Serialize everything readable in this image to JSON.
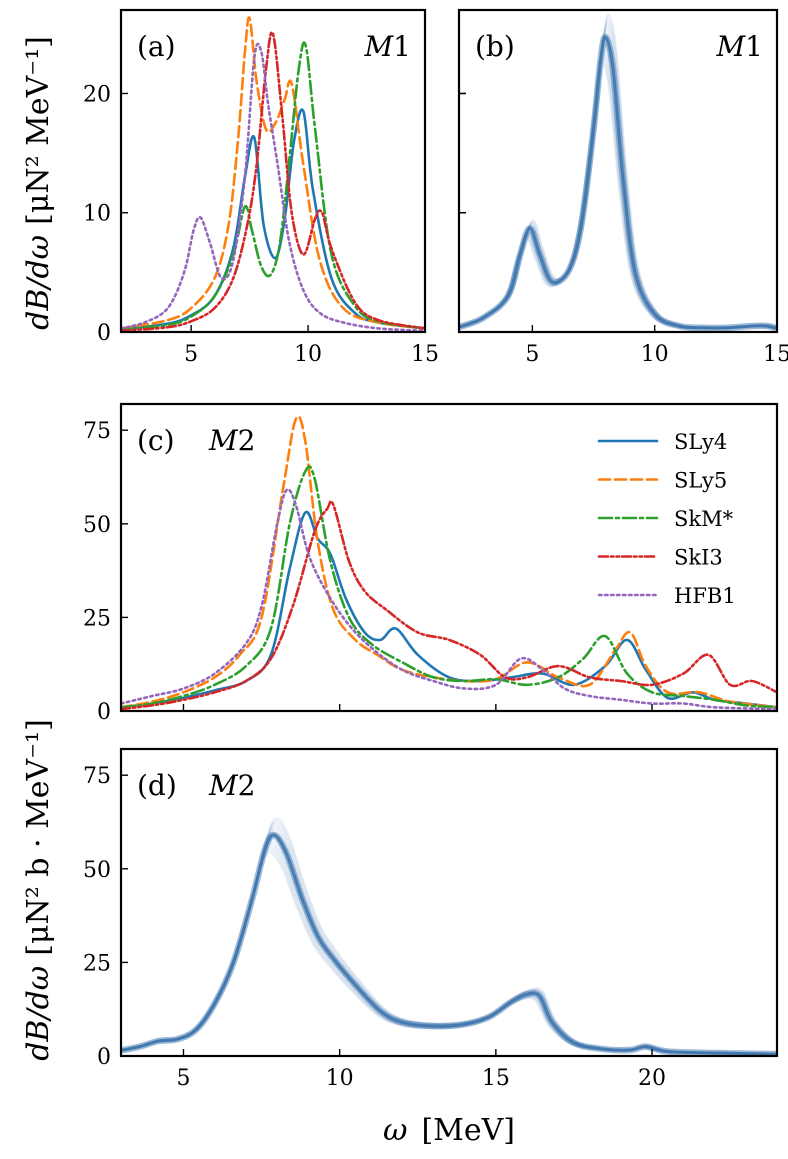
{
  "chart_data": [
    {
      "id": "a",
      "type": "line",
      "panel_label": "(a)",
      "multipole": "M1",
      "xlim": [
        2,
        15
      ],
      "ylim": [
        0,
        27
      ],
      "xticks": [
        5,
        10,
        15
      ],
      "yticks": [
        0,
        10,
        20
      ],
      "series": [
        {
          "name": "SLy4",
          "color": "#1f77b4",
          "style": "solid",
          "x": [
            2,
            4,
            5,
            6,
            6.8,
            7.3,
            7.7,
            8.1,
            8.6,
            9.0,
            9.4,
            9.8,
            10.2,
            11,
            12,
            13,
            15
          ],
          "y": [
            0.2,
            0.7,
            1.4,
            3.0,
            7.0,
            13.0,
            16.3,
            9.0,
            6.2,
            9.5,
            16.0,
            18.5,
            12.0,
            4.5,
            1.6,
            0.8,
            0.3
          ]
        },
        {
          "name": "SLy5",
          "color": "#ff7f0e",
          "style": "dashed",
          "x": [
            2,
            4,
            5,
            6,
            6.6,
            7.0,
            7.3,
            7.5,
            7.8,
            8.2,
            8.6,
            9.0,
            9.3,
            9.8,
            10.5,
            11.5,
            13,
            15
          ],
          "y": [
            0.3,
            1.0,
            2.0,
            4.5,
            9.0,
            16.0,
            23.5,
            26.3,
            21.0,
            17.0,
            17.5,
            19.5,
            20.8,
            14.0,
            6.0,
            2.0,
            0.8,
            0.3
          ]
        },
        {
          "name": "SkM*",
          "color": "#2ca02c",
          "style": "dashdot",
          "x": [
            2,
            4,
            5,
            6,
            6.8,
            7.3,
            7.6,
            8.0,
            8.4,
            8.8,
            9.2,
            9.6,
            9.9,
            10.3,
            11,
            12,
            13,
            15
          ],
          "y": [
            0.2,
            0.6,
            1.3,
            3.0,
            6.5,
            10.5,
            8.5,
            5.5,
            4.8,
            7.5,
            14.5,
            22.0,
            24.0,
            17.0,
            6.5,
            2.2,
            0.9,
            0.3
          ]
        },
        {
          "name": "SkI3",
          "color": "#d62728",
          "style": "dashdotdot",
          "x": [
            2,
            4,
            5,
            6,
            6.8,
            7.4,
            7.8,
            8.2,
            8.5,
            8.9,
            9.3,
            9.8,
            10.3,
            10.6,
            11,
            12,
            13,
            15
          ],
          "y": [
            0.1,
            0.4,
            0.9,
            2.0,
            4.5,
            9.0,
            14.0,
            22.0,
            25.0,
            18.0,
            10.0,
            6.5,
            9.5,
            10.0,
            7.0,
            2.5,
            1.0,
            0.3
          ]
        },
        {
          "name": "HFB1",
          "color": "#9467bd",
          "style": "dotted",
          "x": [
            2,
            3,
            4,
            4.7,
            5.1,
            5.4,
            5.8,
            6.3,
            6.8,
            7.3,
            7.7,
            8.0,
            8.3,
            8.7,
            9.2,
            9.8,
            10.5,
            11.5,
            13,
            15
          ],
          "y": [
            0.3,
            0.8,
            2.0,
            5.0,
            8.5,
            9.6,
            7.5,
            4.5,
            6.0,
            13.0,
            23.0,
            23.5,
            19.0,
            14.0,
            7.5,
            3.5,
            1.6,
            0.8,
            0.3,
            0.1
          ]
        }
      ]
    },
    {
      "id": "b",
      "type": "line",
      "panel_label": "(b)",
      "multipole": "M1",
      "xlim": [
        2,
        15
      ],
      "ylim": [
        0,
        27
      ],
      "xticks": [
        5,
        10,
        15
      ],
      "yticks": [
        0,
        10,
        20
      ],
      "band_color": "#4a7fb5",
      "series": [
        {
          "name": "ensemble-mean",
          "x": [
            2,
            3,
            4,
            4.5,
            4.9,
            5.3,
            5.8,
            6.5,
            7.0,
            7.5,
            7.8,
            8.0,
            8.3,
            8.7,
            9.2,
            10,
            11,
            12,
            13,
            14,
            14.6,
            15
          ],
          "y": [
            0.4,
            1.2,
            3.0,
            6.5,
            8.7,
            6.5,
            4.2,
            5.2,
            9.0,
            17.0,
            23.0,
            24.7,
            22.0,
            13.0,
            5.0,
            1.5,
            0.5,
            0.35,
            0.35,
            0.5,
            0.5,
            0.3
          ]
        }
      ]
    },
    {
      "id": "c",
      "type": "line",
      "panel_label": "(c)",
      "multipole": "M2",
      "xlim": [
        3,
        24
      ],
      "ylim": [
        0,
        82
      ],
      "xticks": [
        5,
        10,
        15,
        20
      ],
      "yticks": [
        0,
        25,
        50,
        75
      ],
      "legend_position": "top-right",
      "series": [
        {
          "name": "SLy4",
          "color": "#1f77b4",
          "style": "solid",
          "x": [
            3,
            4,
            5,
            6,
            7,
            7.8,
            8.4,
            8.9,
            9.3,
            9.7,
            10.2,
            10.8,
            11.3,
            11.8,
            12.5,
            13.5,
            14.5,
            15.5,
            16.5,
            17.5,
            18.5,
            19.2,
            19.8,
            20.5,
            21.3,
            22,
            23,
            24
          ],
          "y": [
            1,
            2,
            3.5,
            5.5,
            8,
            15,
            38,
            53,
            46,
            42,
            30,
            21,
            19,
            22,
            15,
            9,
            8,
            9,
            10,
            7,
            12,
            19,
            11,
            3.5,
            5,
            3,
            2,
            1
          ]
        },
        {
          "name": "SLy5",
          "color": "#ff7f0e",
          "style": "dashed",
          "x": [
            3,
            4,
            5,
            6,
            6.8,
            7.5,
            8.2,
            8.6,
            8.9,
            9.3,
            9.8,
            10.5,
            11.2,
            12,
            13,
            14,
            15,
            16,
            17,
            18,
            18.8,
            19.3,
            19.8,
            20.5,
            21.5,
            22.5,
            24
          ],
          "y": [
            1,
            2.5,
            5,
            9,
            15,
            25,
            60,
            78,
            72,
            45,
            27,
            19,
            15,
            11,
            9,
            8,
            8.5,
            13,
            9,
            7,
            16,
            21,
            12,
            5,
            5,
            2.5,
            1
          ]
        },
        {
          "name": "SkM*",
          "color": "#2ca02c",
          "style": "dashdot",
          "x": [
            3,
            4,
            5,
            6,
            7,
            7.8,
            8.4,
            8.9,
            9.2,
            9.7,
            10.3,
            11,
            12,
            13,
            14,
            15,
            16,
            17,
            17.8,
            18.5,
            19.2,
            20,
            21,
            22,
            23,
            24
          ],
          "y": [
            1,
            2,
            4,
            7,
            12,
            22,
            50,
            64,
            62,
            40,
            25,
            18,
            13,
            9,
            8,
            8.5,
            7,
            9,
            14,
            20,
            10,
            5,
            4,
            3,
            1.5,
            1
          ]
        },
        {
          "name": "SkI3",
          "color": "#d62728",
          "style": "dashdotdot",
          "x": [
            3,
            4,
            5,
            6,
            7,
            7.8,
            8.5,
            9.2,
            9.6,
            9.8,
            10.3,
            10.8,
            11.5,
            12.5,
            13.5,
            14.5,
            15.3,
            16,
            17,
            18,
            19,
            20,
            21,
            21.8,
            22.5,
            23.2,
            24
          ],
          "y": [
            0.5,
            1.5,
            3,
            5,
            8,
            14,
            28,
            48,
            54,
            55,
            40,
            32,
            27,
            21,
            19,
            15,
            9,
            9,
            12,
            9,
            8,
            7,
            10,
            15,
            7,
            8,
            5
          ]
        },
        {
          "name": "HFB1",
          "color": "#9467bd",
          "style": "dotted",
          "x": [
            3,
            4,
            5,
            6,
            7,
            7.5,
            8.0,
            8.3,
            8.6,
            9.0,
            9.5,
            10.2,
            11,
            12,
            13,
            14,
            15,
            15.8,
            16.5,
            17.2,
            18,
            19,
            20,
            21,
            22,
            24
          ],
          "y": [
            2,
            4,
            6,
            10,
            18,
            28,
            50,
            59,
            55,
            42,
            33,
            24,
            17,
            11,
            8,
            6,
            7,
            14,
            11,
            6,
            4,
            3,
            2,
            2,
            1,
            0.5
          ]
        }
      ]
    },
    {
      "id": "d",
      "type": "line",
      "panel_label": "(d)",
      "multipole": "M2",
      "xlim": [
        3,
        24
      ],
      "ylim": [
        0,
        82
      ],
      "xticks": [
        5,
        10,
        15,
        20
      ],
      "yticks": [
        0,
        25,
        50,
        75
      ],
      "band_color": "#4a7fb5",
      "series": [
        {
          "name": "ensemble-mean",
          "x": [
            3,
            3.6,
            4.2,
            4.8,
            5.4,
            6.0,
            6.6,
            7.2,
            7.6,
            7.9,
            8.3,
            8.8,
            9.3,
            9.8,
            10.5,
            11.3,
            12.0,
            13.0,
            14.0,
            14.8,
            15.5,
            16.0,
            16.4,
            16.8,
            17.5,
            18.5,
            19.3,
            19.8,
            20.5,
            22,
            24
          ],
          "y": [
            1.5,
            2.5,
            4,
            4.5,
            7,
            14,
            25,
            42,
            55,
            59,
            54,
            42,
            32,
            26,
            19,
            12,
            9,
            8,
            8.5,
            10.5,
            14.5,
            16.5,
            16,
            9,
            3.5,
            1.8,
            1.6,
            2.5,
            1.2,
            0.8,
            0.5
          ]
        }
      ]
    }
  ],
  "labels": {
    "x_axis_omega": "ω",
    "x_axis_unit": "[MeV]",
    "y_axis_top_lhs": "dB/dω",
    "y_axis_top_unit": "[μN² MeV⁻¹]",
    "y_axis_bottom_lhs": "dB/dω",
    "y_axis_bottom_unit": "[μN² b · MeV⁻¹]"
  }
}
